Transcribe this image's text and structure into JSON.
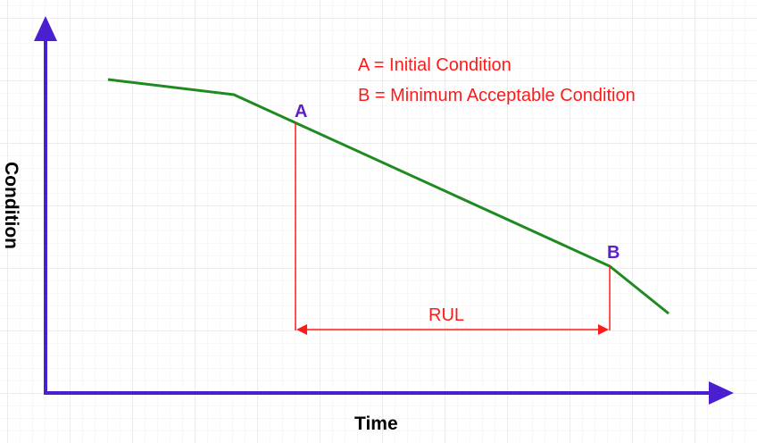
{
  "diagram": {
    "legend": {
      "a": "A = Initial Condition",
      "b": "B = Minimum Acceptable Condition"
    },
    "points": {
      "a_label": "A",
      "b_label": "B"
    },
    "rul_label": "RUL",
    "x_axis_label": "Time",
    "y_axis_label": "Condition",
    "colors": {
      "axis": "#4a1fcf",
      "curve": "#1f8a1f",
      "annotation": "#ff1a1a",
      "point_label": "#5b21c9"
    }
  }
}
